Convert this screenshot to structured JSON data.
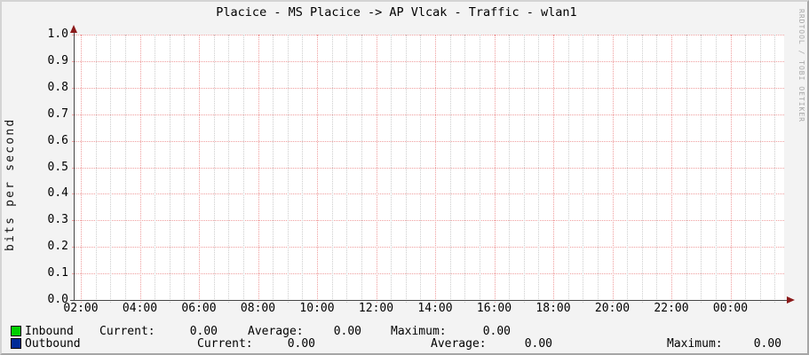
{
  "title": "Placice - MS Placice -> AP Vlcak - Traffic - wlan1",
  "watermark": "RRDTOOL / TOBI OETIKER",
  "y_axis_label": "bits per second",
  "colors": {
    "background": "#f3f3f3",
    "canvas": "#ffffff",
    "major_grid": "#ef9e9e",
    "minor_grid": "#cdcdcd",
    "axis": "#474747",
    "arrow": "#8b1a1a",
    "inbound": "#00CF00",
    "outbound": "#002A97",
    "border_light": "#d4d4d4",
    "border_dark": "#a6a6a6",
    "watermark_text": "#a8a8a8"
  },
  "chart_data": {
    "type": "line",
    "title": "Placice - MS Placice -> AP Vlcak - Traffic - wlan1",
    "xlabel": "",
    "ylabel": "bits per second",
    "ylim": [
      0.0,
      1.0
    ],
    "y_ticks": [
      "1.0",
      "0.9",
      "0.8",
      "0.7",
      "0.6",
      "0.5",
      "0.4",
      "0.3",
      "0.2",
      "0.1",
      "0.0"
    ],
    "x_ticks": [
      "02:00",
      "04:00",
      "06:00",
      "08:00",
      "10:00",
      "12:00",
      "14:00",
      "16:00",
      "18:00",
      "20:00",
      "22:00",
      "00:00"
    ],
    "grid": true,
    "legend_position": "bottom",
    "series": [
      {
        "name": "Inbound",
        "color": "#00CF00",
        "values": [
          0,
          0,
          0,
          0,
          0,
          0,
          0,
          0,
          0,
          0,
          0,
          0
        ]
      },
      {
        "name": "Outbound",
        "color": "#002A97",
        "values": [
          0,
          0,
          0,
          0,
          0,
          0,
          0,
          0,
          0,
          0,
          0,
          0
        ]
      }
    ]
  },
  "legend": {
    "rows": [
      {
        "name": "Inbound",
        "color": "#00CF00",
        "stats": [
          {
            "label": "Current:",
            "value": "0.00"
          },
          {
            "label": "Average:",
            "value": "0.00"
          },
          {
            "label": "Maximum:",
            "value": "0.00"
          }
        ]
      },
      {
        "name": "Outbound",
        "color": "#002A97",
        "stats": [
          {
            "label": "Current:",
            "value": "0.00"
          },
          {
            "label": "Average:",
            "value": "0.00"
          },
          {
            "label": "Maximum:",
            "value": "0.00"
          }
        ]
      }
    ]
  }
}
